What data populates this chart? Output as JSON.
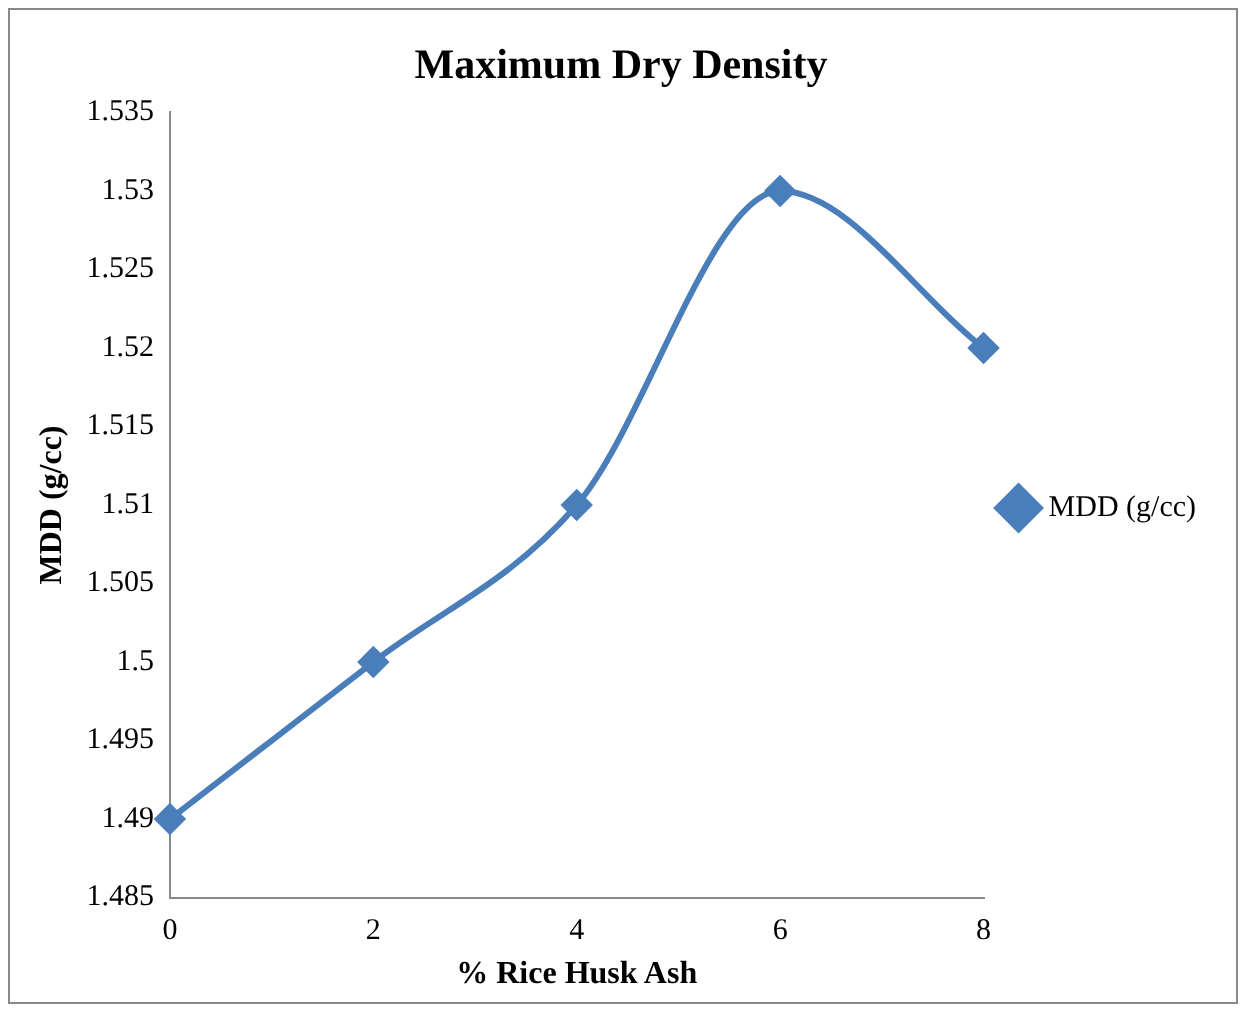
{
  "chart_data": {
    "type": "line",
    "title": "Maximum Dry Density",
    "xlabel": "% Rice Husk Ash",
    "ylabel": "MDD (g/cc)",
    "categories": [
      "0",
      "2",
      "4",
      "6",
      "8"
    ],
    "series": [
      {
        "name": "MDD (g/cc)",
        "color": "#4a7ebb",
        "values": [
          1.49,
          1.5,
          1.51,
          1.53,
          1.52
        ]
      }
    ],
    "ylim": [
      1.485,
      1.535
    ],
    "yticks": [
      1.485,
      1.49,
      1.495,
      1.5,
      1.505,
      1.51,
      1.515,
      1.52,
      1.525,
      1.53,
      1.535
    ],
    "grid": false,
    "legend": "right",
    "marker": "diamond",
    "line_style": "solid"
  }
}
